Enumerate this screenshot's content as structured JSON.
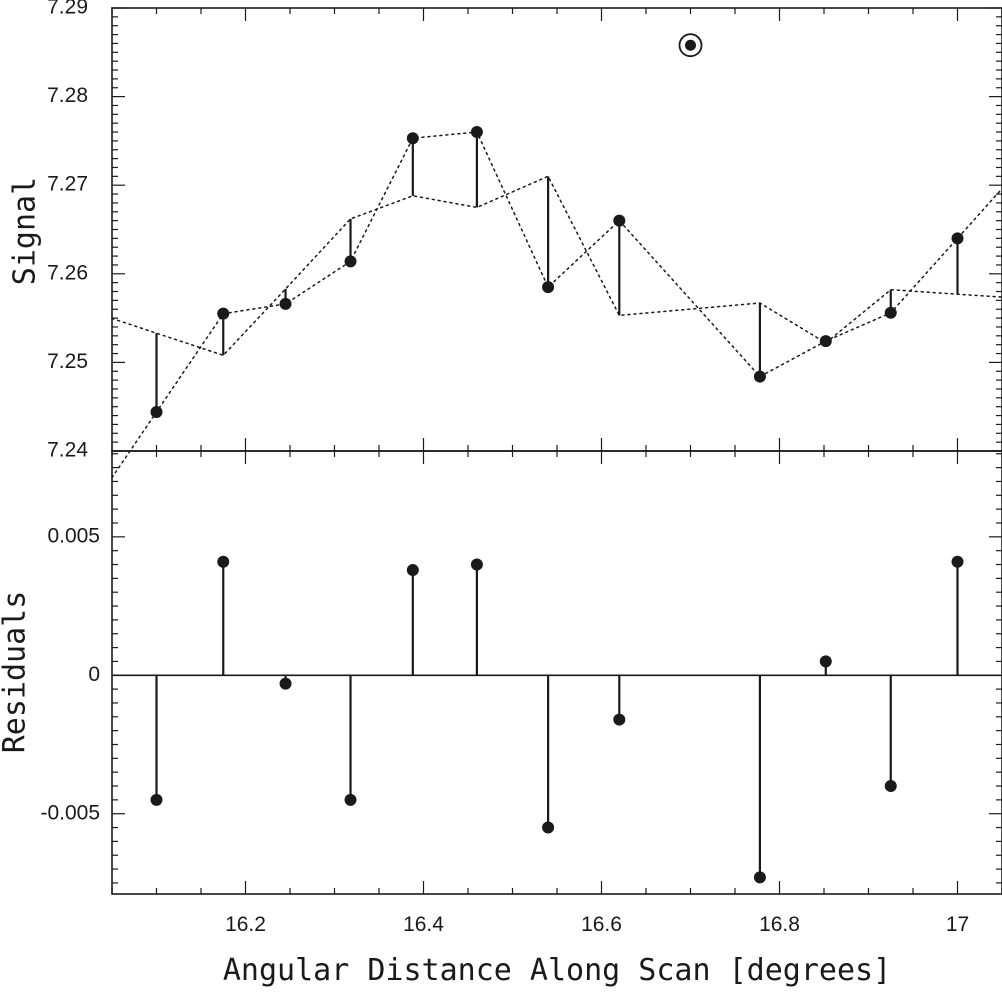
{
  "chart_data": [
    {
      "type": "scatter",
      "panel": "top",
      "xlabel": "",
      "ylabel": "Signal",
      "xlim": [
        16.05,
        17.05
      ],
      "ylim": [
        7.24,
        7.29
      ],
      "yticks": [
        "7.24",
        "7.25",
        "7.26",
        "7.27",
        "7.28",
        "7.29"
      ],
      "grid": false,
      "series": [
        {
          "kind": "observed",
          "x": [
            16.1,
            16.175,
            16.245,
            16.318,
            16.388,
            16.46,
            16.54,
            16.62,
            16.778,
            16.852,
            16.925,
            17.0
          ],
          "y": [
            7.2444,
            7.2555,
            7.2566,
            7.2614,
            7.2753,
            7.276,
            7.2585,
            7.266,
            7.2484,
            7.2524,
            7.2556,
            7.264
          ]
        },
        {
          "kind": "model",
          "x": [
            16.1,
            16.175,
            16.245,
            16.318,
            16.388,
            16.46,
            16.54,
            16.62,
            16.778,
            16.852,
            16.925,
            17.0
          ],
          "y": [
            7.2533,
            7.2508,
            7.2583,
            7.2662,
            7.2688,
            7.2675,
            7.271,
            7.2553,
            7.2567,
            7.2522,
            7.2582,
            7.2577
          ]
        },
        {
          "kind": "outlier",
          "x": [
            16.7
          ],
          "y": [
            7.2858
          ]
        }
      ]
    },
    {
      "type": "scatter",
      "panel": "bottom",
      "xlabel": "Angular Distance Along Scan [degrees]",
      "ylabel": "Residuals",
      "xlim": [
        16.05,
        17.05
      ],
      "ylim": [
        -0.0079,
        0.0081
      ],
      "xticks": [
        "16.2",
        "16.4",
        "16.6",
        "16.8",
        "17"
      ],
      "yticks": [
        "-0.005",
        "0",
        "0.005"
      ],
      "grid": false,
      "series": [
        {
          "kind": "residuals",
          "x": [
            16.1,
            16.175,
            16.245,
            16.318,
            16.388,
            16.46,
            16.54,
            16.62,
            16.778,
            16.852,
            16.925,
            17.0
          ],
          "y": [
            -0.0045,
            0.0041,
            -0.0003,
            -0.0045,
            0.0038,
            0.004,
            -0.0055,
            -0.0016,
            -0.0073,
            0.0005,
            -0.004,
            0.0041
          ]
        }
      ]
    }
  ]
}
